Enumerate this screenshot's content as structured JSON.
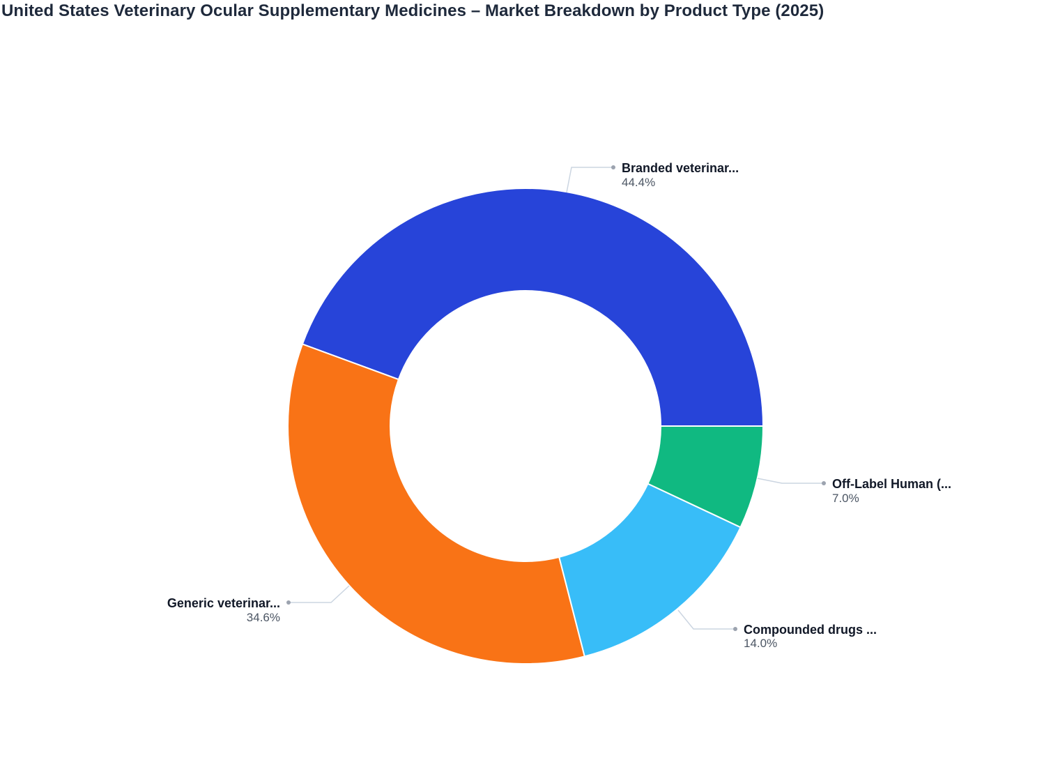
{
  "title": "United States Veterinary Ocular Supplementary Medicines – Market Breakdown by Product Type (2025)",
  "chart_data": {
    "type": "pie",
    "subtype": "donut",
    "title": "United States Veterinary Ocular Supplementary Medicines – Market Breakdown by Product Type (2025)",
    "categories": [
      "Branded veterinar...",
      "Generic veterinar...",
      "Compounded drugs ...",
      "Off-Label Human (..."
    ],
    "values": [
      44.4,
      34.6,
      14.0,
      7.0
    ],
    "unit": "%",
    "colors": [
      "#2744d9",
      "#f97316",
      "#38bdf8",
      "#10b981"
    ],
    "labels": [
      {
        "name": "Branded veterinar...",
        "pct": "44.4%"
      },
      {
        "name": "Generic veterinar...",
        "pct": "34.6%"
      },
      {
        "name": "Compounded drugs ...",
        "pct": "14.0%"
      },
      {
        "name": "Off-Label Human (...",
        "pct": "7.0%"
      }
    ],
    "legend": "none (outside labels with leader lines)",
    "start_angle": "3 o'clock, counterclockwise"
  }
}
